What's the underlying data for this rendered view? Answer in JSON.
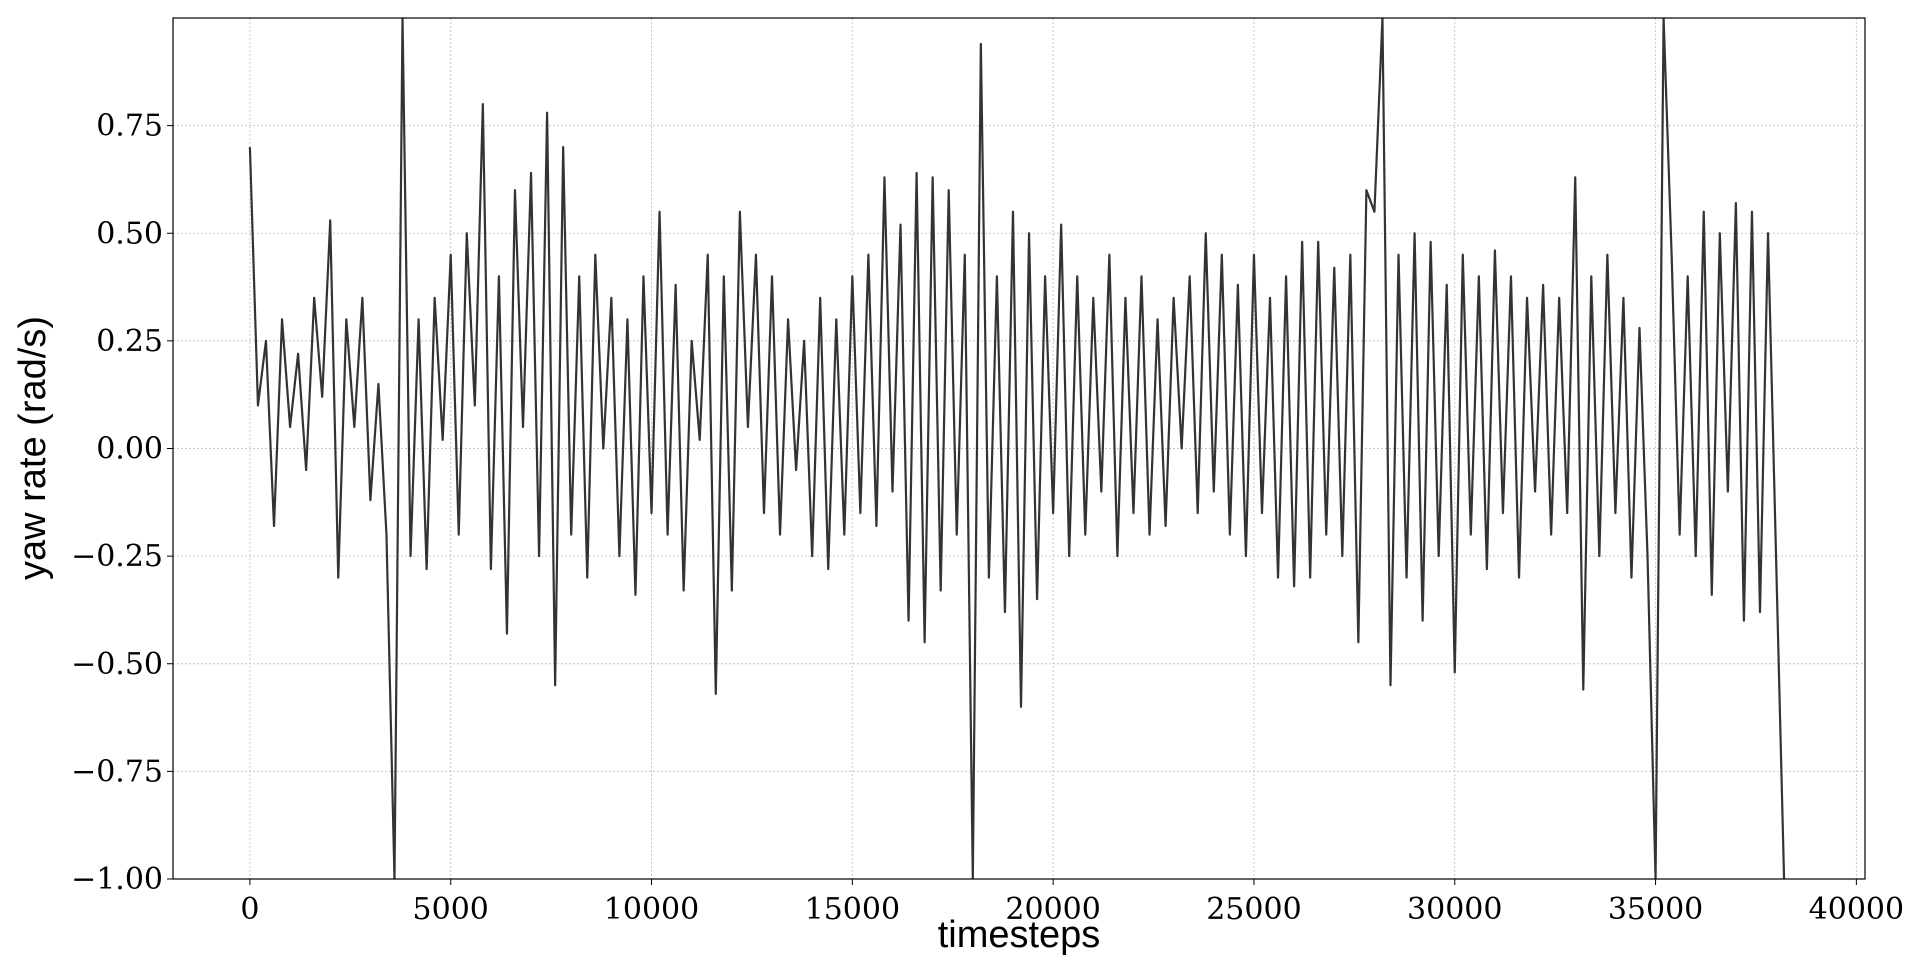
{
  "chart_data": {
    "type": "line",
    "x_label": "timesteps",
    "y_label": "yaw rate (rad/s)",
    "xlim": [
      -1915,
      40215
    ],
    "ylim": [
      -1.0,
      1.0
    ],
    "xticks": [
      0,
      5000,
      10000,
      15000,
      20000,
      25000,
      30000,
      35000,
      40000
    ],
    "yticks": [
      {
        "value": -1.0,
        "label": "−1.00"
      },
      {
        "value": -0.75,
        "label": "−0.75"
      },
      {
        "value": -0.5,
        "label": "−0.50"
      },
      {
        "value": -0.25,
        "label": "−0.25"
      },
      {
        "value": 0,
        "label": "0.00"
      },
      {
        "value": 0.25,
        "label": "0.25"
      },
      {
        "value": 0.5,
        "label": "0.50"
      },
      {
        "value": 0.75,
        "label": "0.75"
      }
    ],
    "grid": true,
    "x": [
      0,
      200,
      400,
      600,
      800,
      1000,
      1200,
      1400,
      1600,
      1800,
      2000,
      2200,
      2400,
      2600,
      2800,
      3000,
      3200,
      3400,
      3600,
      3800,
      4000,
      4200,
      4400,
      4600,
      4800,
      5000,
      5200,
      5400,
      5600,
      5800,
      6000,
      6200,
      6400,
      6600,
      6800,
      7000,
      7200,
      7400,
      7600,
      7800,
      8000,
      8200,
      8400,
      8600,
      8800,
      9000,
      9200,
      9400,
      9600,
      9800,
      10000,
      10200,
      10400,
      10600,
      10800,
      11000,
      11200,
      11400,
      11600,
      11800,
      12000,
      12200,
      12400,
      12600,
      12800,
      13000,
      13200,
      13400,
      13600,
      13800,
      14000,
      14200,
      14400,
      14600,
      14800,
      15000,
      15200,
      15400,
      15600,
      15800,
      16000,
      16200,
      16400,
      16600,
      16800,
      17000,
      17200,
      17400,
      17600,
      17800,
      18000,
      18200,
      18400,
      18600,
      18800,
      19000,
      19200,
      19400,
      19600,
      19800,
      20000,
      20200,
      20400,
      20600,
      20800,
      21000,
      21200,
      21400,
      21600,
      21800,
      22000,
      22200,
      22400,
      22600,
      22800,
      23000,
      23200,
      23400,
      23600,
      23800,
      24000,
      24200,
      24400,
      24600,
      24800,
      25000,
      25200,
      25400,
      25600,
      25800,
      26000,
      26200,
      26400,
      26600,
      26800,
      27000,
      27200,
      27400,
      27600,
      27800,
      28000,
      28200,
      28400,
      28600,
      28800,
      29000,
      29200,
      29400,
      29600,
      29800,
      30000,
      30200,
      30400,
      30600,
      30800,
      31000,
      31200,
      31400,
      31600,
      31800,
      32000,
      32200,
      32400,
      32600,
      32800,
      33000,
      33200,
      33400,
      33600,
      33800,
      34000,
      34200,
      34400,
      34600,
      34800,
      35000,
      35200,
      35400,
      35600,
      35800,
      36000,
      36200,
      36400,
      36600,
      36800,
      37000,
      37200,
      37400,
      37600,
      37800,
      38000,
      38200
    ],
    "series": [
      {
        "color": "#333333",
        "values": [
          0.7,
          0.1,
          0.25,
          -0.18,
          0.3,
          0.05,
          0.22,
          -0.05,
          0.35,
          0.12,
          0.53,
          -0.3,
          0.3,
          0.05,
          0.35,
          -0.12,
          0.15,
          -0.2,
          -1.0,
          1.0,
          -0.25,
          0.3,
          -0.28,
          0.35,
          0.02,
          0.45,
          -0.2,
          0.5,
          0.1,
          0.8,
          -0.28,
          0.4,
          -0.43,
          0.6,
          0.05,
          0.64,
          -0.25,
          0.78,
          -0.55,
          0.7,
          -0.2,
          0.4,
          -0.3,
          0.45,
          0.0,
          0.35,
          -0.25,
          0.3,
          -0.34,
          0.4,
          -0.15,
          0.55,
          -0.2,
          0.38,
          -0.33,
          0.25,
          0.02,
          0.45,
          -0.57,
          0.4,
          -0.33,
          0.55,
          0.05,
          0.45,
          -0.15,
          0.4,
          -0.2,
          0.3,
          -0.05,
          0.25,
          -0.25,
          0.35,
          -0.28,
          0.3,
          -0.2,
          0.4,
          -0.15,
          0.45,
          -0.18,
          0.63,
          -0.1,
          0.52,
          -0.4,
          0.64,
          -0.45,
          0.63,
          -0.33,
          0.6,
          -0.2,
          0.45,
          -1.0,
          0.94,
          -0.3,
          0.4,
          -0.38,
          0.55,
          -0.6,
          0.5,
          -0.35,
          0.4,
          -0.15,
          0.52,
          -0.25,
          0.4,
          -0.2,
          0.35,
          -0.1,
          0.45,
          -0.25,
          0.35,
          -0.15,
          0.4,
          -0.2,
          0.3,
          -0.18,
          0.35,
          0.0,
          0.4,
          -0.15,
          0.5,
          -0.1,
          0.45,
          -0.2,
          0.38,
          -0.25,
          0.45,
          -0.15,
          0.35,
          -0.3,
          0.4,
          -0.32,
          0.48,
          -0.3,
          0.48,
          -0.2,
          0.42,
          -0.25,
          0.45,
          -0.45,
          0.6,
          0.55,
          1.0,
          -0.55,
          0.45,
          -0.3,
          0.5,
          -0.4,
          0.48,
          -0.25,
          0.38,
          -0.52,
          0.45,
          -0.2,
          0.4,
          -0.28,
          0.46,
          -0.15,
          0.4,
          -0.3,
          0.35,
          -0.1,
          0.38,
          -0.2,
          0.35,
          -0.15,
          0.63,
          -0.56,
          0.4,
          -0.25,
          0.45,
          -0.15,
          0.35,
          -0.3,
          0.28,
          -0.25,
          -1.0,
          1.0,
          0.45,
          -0.2,
          0.4,
          -0.25,
          0.55,
          -0.34,
          0.5,
          -0.1,
          0.57,
          -0.4,
          0.55,
          -0.38,
          0.5,
          -0.25,
          -1.0
        ]
      }
    ]
  }
}
